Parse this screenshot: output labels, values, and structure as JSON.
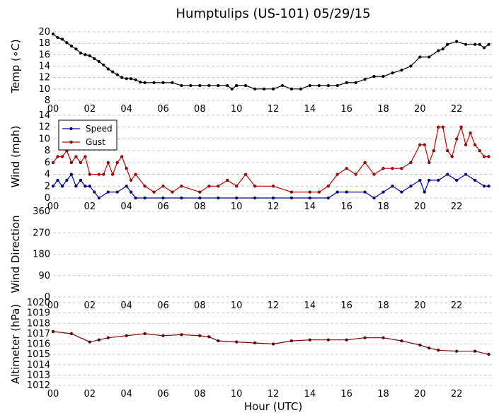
{
  "chart_data": {
    "title": "Humptulips (US-101) 05/29/15",
    "xlabel": "Hour (UTC)",
    "x_ticks": [
      "00",
      "02",
      "04",
      "06",
      "08",
      "10",
      "12",
      "14",
      "16",
      "18",
      "20",
      "22"
    ],
    "x_range": [
      0,
      24
    ],
    "grid": "horizontal dashed",
    "panels": [
      {
        "type": "line",
        "ylabel": "Temp (∘C)",
        "ylim": [
          8,
          20
        ],
        "y_ticks": [
          "8",
          "10",
          "12",
          "14",
          "16",
          "18",
          "20"
        ],
        "series": [
          {
            "color": "#000000",
            "x": [
              0,
              0.25,
              0.5,
              0.75,
              1,
              1.25,
              1.5,
              1.75,
              2,
              2.25,
              2.5,
              2.75,
              3,
              3.25,
              3.5,
              3.75,
              4,
              4.25,
              4.5,
              4.75,
              5,
              5.5,
              6,
              6.5,
              7,
              7.5,
              8,
              8.5,
              9,
              9.5,
              9.75,
              10,
              10.5,
              11,
              11.5,
              12,
              12.5,
              13,
              13.5,
              14,
              14.5,
              15,
              15.5,
              16,
              16.5,
              17,
              17.5,
              18,
              18.5,
              19,
              19.5,
              20,
              20.5,
              21,
              21.25,
              21.5,
              22,
              22.5,
              23,
              23.25,
              23.5,
              23.75
            ],
            "values": [
              19.6,
              19.0,
              18.7,
              18.1,
              17.5,
              17.0,
              16.3,
              16.0,
              15.8,
              15.3,
              14.8,
              14.2,
              13.5,
              13.0,
              12.5,
              12.0,
              11.8,
              11.8,
              11.6,
              11.2,
              11.1,
              11.1,
              11.1,
              11.1,
              10.6,
              10.6,
              10.6,
              10.6,
              10.6,
              10.6,
              10.0,
              10.6,
              10.6,
              10.0,
              10.0,
              10.0,
              10.6,
              10.0,
              10.0,
              10.6,
              10.6,
              10.6,
              10.6,
              11.1,
              11.1,
              11.7,
              12.2,
              12.2,
              12.8,
              13.3,
              14.0,
              15.6,
              15.6,
              16.7,
              17.0,
              17.8,
              18.3,
              17.8,
              17.8,
              17.8,
              17.2,
              17.8
            ]
          }
        ]
      },
      {
        "type": "line",
        "ylabel": "Wind (mph)",
        "ylim": [
          0,
          14
        ],
        "y_ticks": [
          "0",
          "2",
          "4",
          "6",
          "8",
          "10",
          "12",
          "14"
        ],
        "legend": "top-left",
        "series": [
          {
            "name": "Speed",
            "color": "#0000aa",
            "x": [
              0,
              0.25,
              0.5,
              0.75,
              1,
              1.25,
              1.5,
              1.75,
              2,
              2.25,
              2.5,
              3,
              3.5,
              4,
              4.25,
              4.5,
              5,
              6,
              7,
              8,
              9,
              10,
              11,
              12,
              13,
              14,
              15,
              15.5,
              16,
              17,
              17.5,
              18,
              18.5,
              19,
              19.5,
              20,
              20.25,
              20.5,
              21,
              21.5,
              22,
              22.5,
              23,
              23.5,
              23.75
            ],
            "values": [
              2,
              3,
              2,
              3,
              4,
              2,
              3,
              2,
              2,
              1,
              0,
              1,
              1,
              2,
              1,
              0,
              0,
              0,
              0,
              0,
              0,
              0,
              0,
              0,
              0,
              0,
              0,
              1,
              1,
              1,
              0,
              1,
              2,
              1,
              2,
              3,
              1,
              3,
              3,
              4,
              3,
              4,
              3,
              2,
              2
            ]
          },
          {
            "name": "Gust",
            "color": "#cc0000",
            "x": [
              0,
              0.25,
              0.5,
              0.75,
              1,
              1.25,
              1.5,
              1.75,
              2,
              2.5,
              2.75,
              3,
              3.25,
              3.5,
              3.75,
              4,
              4.25,
              4.5,
              5,
              5.5,
              6,
              6.5,
              7,
              8,
              8.5,
              9,
              9.5,
              10,
              10.5,
              11,
              12,
              13,
              14,
              14.5,
              15,
              15.5,
              16,
              16.5,
              17,
              17.5,
              18,
              18.5,
              19,
              19.5,
              20,
              20.25,
              20.5,
              20.75,
              21,
              21.25,
              21.5,
              21.75,
              22,
              22.25,
              22.5,
              22.75,
              23,
              23.25,
              23.5,
              23.75
            ],
            "values": [
              6,
              7,
              7,
              8,
              6,
              7,
              6,
              7,
              4,
              4,
              4,
              6,
              4,
              6,
              7,
              5,
              3,
              4,
              2,
              1,
              2,
              1,
              2,
              1,
              2,
              2,
              3,
              2,
              4,
              2,
              2,
              1,
              1,
              1,
              2,
              4,
              5,
              4,
              6,
              4,
              5,
              5,
              5,
              6,
              9,
              9,
              6,
              8,
              12,
              12,
              8,
              7,
              10,
              12,
              9,
              11,
              9,
              8,
              7,
              7
            ]
          }
        ]
      },
      {
        "type": "scatter",
        "ylabel": "Wind Direction",
        "ylim": [
          0,
          360
        ],
        "y_ticks": [
          "0",
          "90",
          "180",
          "270",
          "360"
        ],
        "series": [
          {
            "color": "#ffa500",
            "x": [
              0,
              0.25,
              0.5,
              0.75,
              1,
              1.25,
              1.5,
              1.75,
              2,
              2.25,
              2.5,
              2.75,
              3,
              3.25,
              3.5,
              3.75,
              4,
              4.25,
              4.5,
              4.75,
              5,
              5.25,
              5.5,
              5.75,
              6,
              6.25,
              6.5,
              6.75,
              7,
              7.25,
              7.5,
              7.75,
              8,
              8.25,
              8.5,
              8.75,
              9,
              9.25,
              9.5,
              9.75,
              10,
              10.25,
              10.5,
              10.75,
              11,
              11.25,
              11.5,
              11.75,
              12,
              12.25,
              12.5,
              12.75,
              13,
              13.25,
              13.5,
              13.75,
              14,
              14.25,
              14.5,
              14.75,
              15,
              15.25,
              15.5,
              15.75,
              16,
              16.25,
              16.5,
              16.75,
              17,
              17.25,
              17.5,
              17.75,
              18,
              18.25,
              18.5,
              18.75,
              19,
              19.25,
              19.5,
              19.75,
              20,
              20.25,
              20.5,
              20.75,
              21,
              21.25,
              21.5,
              21.75,
              22,
              22.25,
              22.5,
              22.75,
              23,
              23.25,
              23.5,
              23.75
            ],
            "values": [
              null,
              null,
              null,
              null,
              null,
              null,
              null,
              null,
              null,
              null,
              null,
              null,
              null,
              null,
              null,
              null,
              null,
              null,
              null,
              null,
              null,
              null,
              null,
              null,
              null,
              null,
              null,
              null,
              null,
              null,
              null,
              null,
              null,
              null,
              null,
              null,
              null,
              null,
              null,
              null,
              null,
              null,
              null,
              null,
              null,
              null,
              null,
              null,
              null,
              null,
              null,
              null,
              null,
              null,
              null,
              null,
              null,
              null,
              null,
              null,
              null,
              null,
              null,
              null,
              null,
              null,
              null,
              null,
              null,
              null,
              null,
              null,
              null,
              null,
              null,
              null,
              null,
              null,
              null,
              null,
              null,
              null,
              null,
              null,
              null,
              null,
              null,
              null,
              null,
              null,
              null,
              null,
              null,
              null,
              null,
              null
            ]
          }
        ]
      },
      {
        "type": "line",
        "ylabel": "Altimeter (hPa)",
        "ylim": [
          1012,
          1020
        ],
        "y_ticks": [
          "1012",
          "1013",
          "1014",
          "1015",
          "1016",
          "1017",
          "1018",
          "1019",
          "1020"
        ],
        "series": [
          {
            "color": "#800000",
            "x": [
              0,
              1,
              2,
              2.5,
              3,
              4,
              5,
              6,
              7,
              8,
              8.5,
              9,
              10,
              11,
              12,
              13,
              14,
              15,
              16,
              17,
              18,
              19,
              20,
              20.5,
              21,
              22,
              23,
              23.75
            ],
            "values": [
              1017.2,
              1017.0,
              1016.2,
              1016.4,
              1016.6,
              1016.8,
              1017.0,
              1016.8,
              1016.9,
              1016.8,
              1016.7,
              1016.3,
              1016.2,
              1016.1,
              1016.0,
              1016.3,
              1016.4,
              1016.4,
              1016.4,
              1016.6,
              1016.6,
              1016.3,
              1015.9,
              1015.6,
              1015.4,
              1015.3,
              1015.3,
              1015.0
            ]
          }
        ]
      }
    ]
  }
}
